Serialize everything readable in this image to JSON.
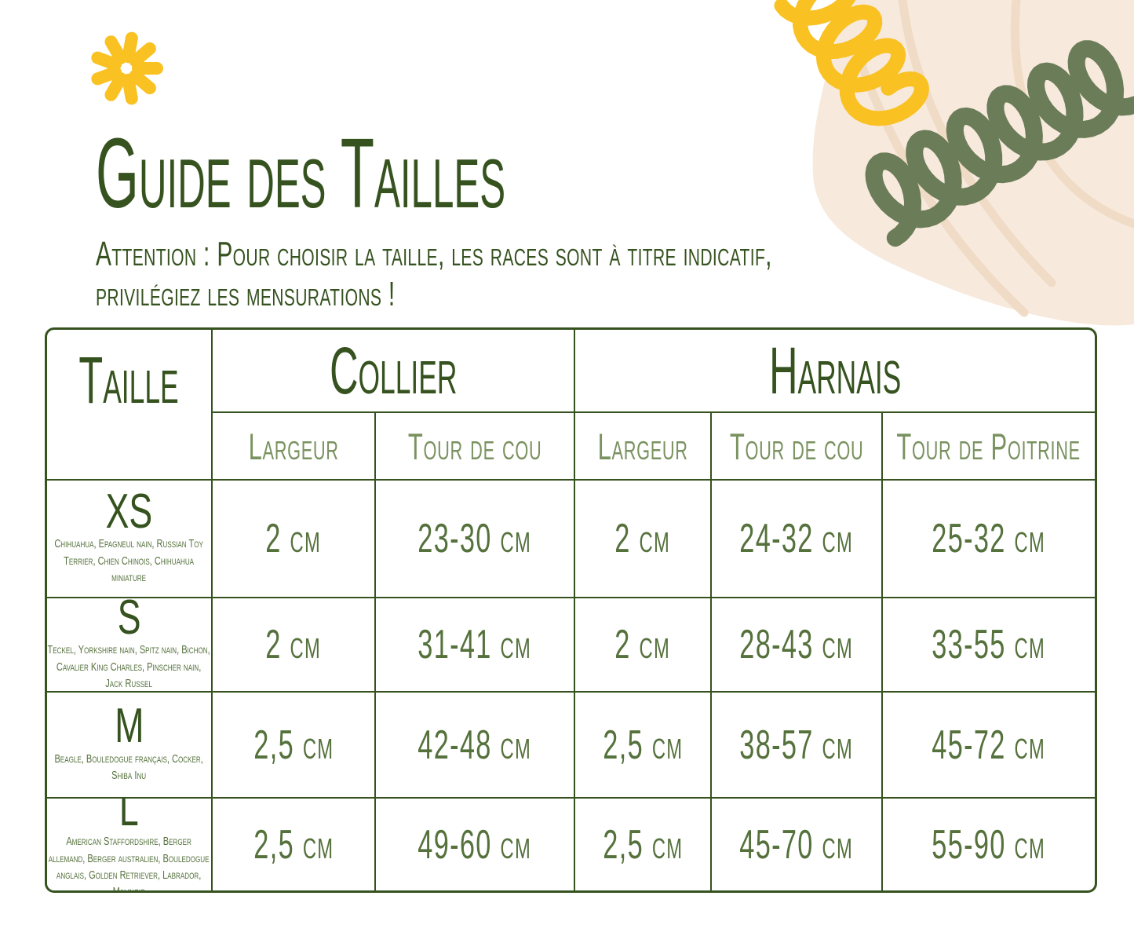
{
  "page": {
    "title": "Guide des Tailles",
    "subtitle_line1": "Attention : Pour choisir la taille, les races sont à titre indicatif,",
    "subtitle_line2": "privilégiez les mensurations !"
  },
  "colors": {
    "dark_green": "#35521f",
    "text_green": "#55713c",
    "subheader_green": "#7a9260",
    "yellow": "#f9c122",
    "blob_beige": "#f7e9dc",
    "blob_line": "#f0dbc6",
    "spiral_green": "#6b7c58"
  },
  "decorations": {
    "asterisk": "sun-asterisk-icon",
    "yellow_spiral": "yellow-spiral-icon",
    "green_spiral": "green-spiral-icon",
    "blob": "beige-blob-shape"
  },
  "table": {
    "col_headers": {
      "size": "Taille",
      "collar": "Collier",
      "harness": "Harnais"
    },
    "sub_headers": {
      "collar_width": "Largeur",
      "collar_neck": "Tour de cou",
      "harness_width": "Largeur",
      "harness_neck": "Tour de cou",
      "harness_chest": "Tour de Poitrine"
    },
    "rows": [
      {
        "size": "XS",
        "breeds": "Chihuahua, Epagneul nain, Russian Toy Terrier, Chien Chinois, Chihuahua miniature",
        "collar_width": "2 cm",
        "collar_neck": "23-30 cm",
        "harness_width": "2 cm",
        "harness_neck": "24-32 cm",
        "harness_chest": "25-32 cm"
      },
      {
        "size": "S",
        "breeds": "Teckel, Yorkshire nain, Spitz nain, Bichon, Cavalier King Charles, Pinscher nain, Jack Russel",
        "collar_width": "2 cm",
        "collar_neck": "31-41 cm",
        "harness_width": "2 cm",
        "harness_neck": "28-43 cm",
        "harness_chest": "33-55 cm"
      },
      {
        "size": "M",
        "breeds": "Beagle, Bouledogue français, Cocker, Shiba Inu",
        "collar_width": "2,5 cm",
        "collar_neck": "42-48 cm",
        "harness_width": "2,5 cm",
        "harness_neck": "38-57 cm",
        "harness_chest": "45-72 cm"
      },
      {
        "size": "L",
        "breeds": "American Staffordshire, Berger allemand, Berger australien, Bouledogue anglais, Golden Retriever, Labrador, Malinois",
        "collar_width": "2,5 cm",
        "collar_neck": "49-60 cm",
        "harness_width": "2,5 cm",
        "harness_neck": "45-70 cm",
        "harness_chest": "55-90 cm"
      }
    ]
  }
}
